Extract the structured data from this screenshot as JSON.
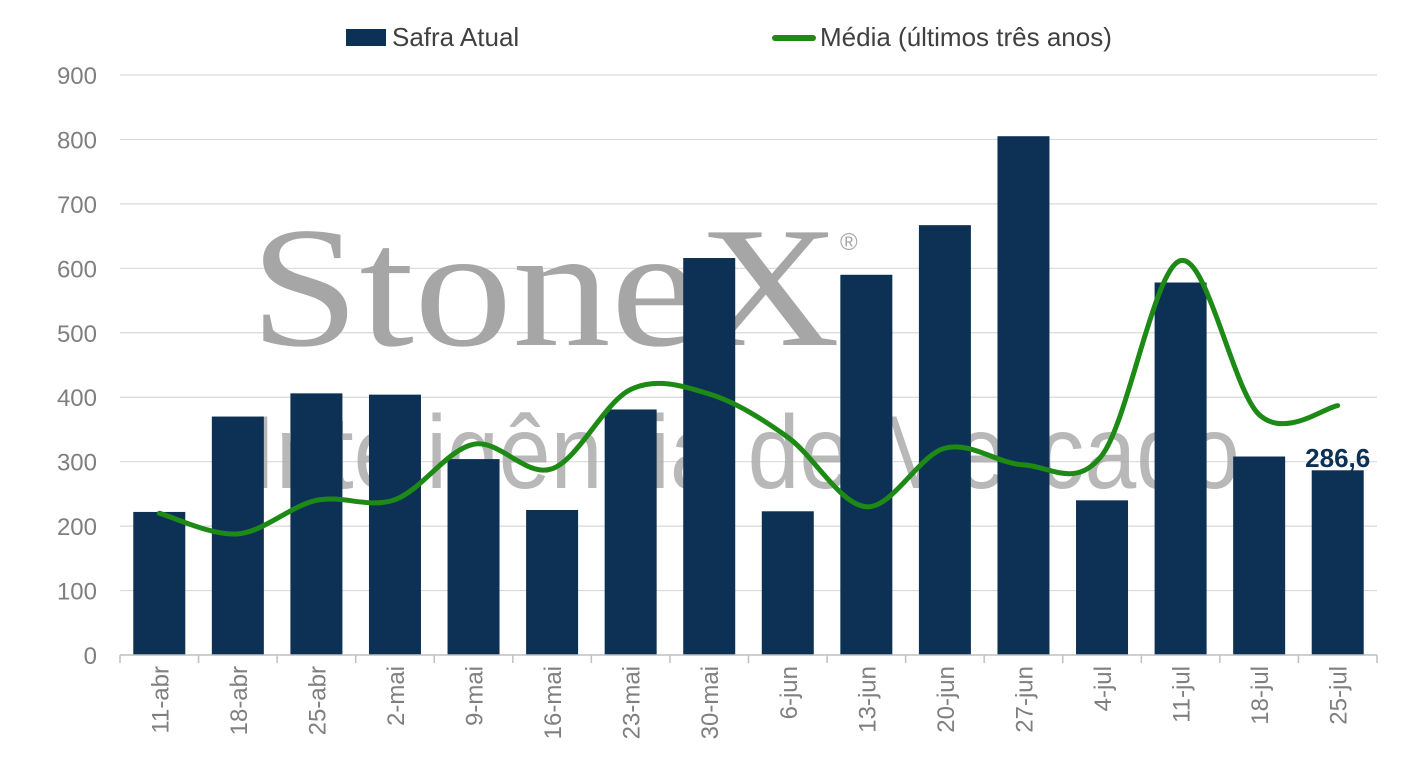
{
  "chart_data": {
    "type": "bar",
    "categories": [
      "11-abr",
      "18-abr",
      "25-abr",
      "2-mai",
      "9-mai",
      "16-mai",
      "23-mai",
      "30-mai",
      "6-jun",
      "13-jun",
      "20-jun",
      "27-jun",
      "4-jul",
      "11-jul",
      "18-jul",
      "25-jul"
    ],
    "series": [
      {
        "name": "Safra Atual",
        "type": "bar",
        "color": "#0d3154",
        "values": [
          222,
          370,
          406,
          404,
          304,
          225,
          381,
          616,
          223,
          590,
          667,
          805,
          240,
          578,
          308,
          286.6
        ]
      },
      {
        "name": "Média (últimos três anos)",
        "type": "line",
        "color": "#1e8a16",
        "values": [
          220,
          188,
          240,
          241,
          327,
          289,
          412,
          405,
          338,
          230,
          321,
          295,
          310,
          612,
          373,
          387
        ]
      }
    ],
    "ylim": [
      0,
      900
    ],
    "yticks": [
      0,
      100,
      200,
      300,
      400,
      500,
      600,
      700,
      800,
      900
    ],
    "grid": true,
    "legend": "top",
    "data_labels": [
      {
        "category": "25-jul",
        "text": "286,6"
      }
    ],
    "watermark": {
      "brand": "StoneX",
      "registered": "®",
      "tagline": "Inteligência de Mercado"
    },
    "colors": {
      "label": "#0d3154",
      "axis_text": "#7f7f7f",
      "grid": "#d9d9d9",
      "watermark": "#a6a6a6"
    }
  }
}
